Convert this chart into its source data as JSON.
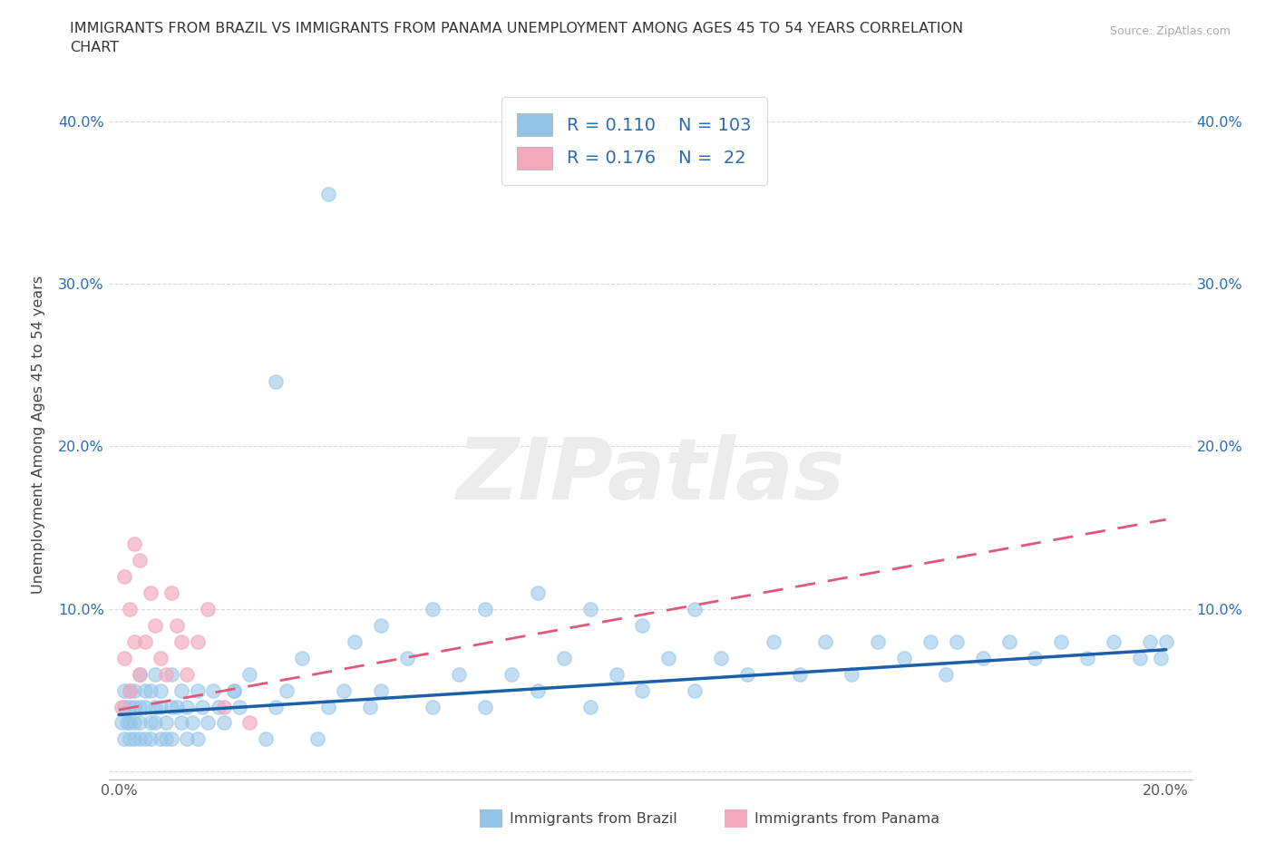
{
  "title_line1": "IMMIGRANTS FROM BRAZIL VS IMMIGRANTS FROM PANAMA UNEMPLOYMENT AMONG AGES 45 TO 54 YEARS CORRELATION",
  "title_line2": "CHART",
  "source": "Source: ZipAtlas.com",
  "ylabel": "Unemployment Among Ages 45 to 54 years",
  "xlim": [
    -0.002,
    0.205
  ],
  "ylim": [
    -0.005,
    0.42
  ],
  "xticks": [
    0.0,
    0.05,
    0.1,
    0.15,
    0.2
  ],
  "yticks": [
    0.0,
    0.1,
    0.2,
    0.3,
    0.4
  ],
  "xticklabels": [
    "0.0%",
    "",
    "",
    "",
    "20.0%"
  ],
  "yticklabels_left": [
    "",
    "10.0%",
    "20.0%",
    "30.0%",
    "40.0%"
  ],
  "yticklabels_right": [
    "",
    "10.0%",
    "20.0%",
    "30.0%",
    "40.0%"
  ],
  "brazil_color": "#93c4e8",
  "panama_color": "#f4a8bc",
  "brazil_line_color": "#1a5fa8",
  "panama_line_color": "#e05878",
  "brazil_R": 0.11,
  "brazil_N": 103,
  "panama_R": 0.176,
  "panama_N": 22,
  "legend_label_brazil": "Immigrants from Brazil",
  "legend_label_panama": "Immigrants from Panama",
  "watermark": "ZIPatlas",
  "text_color_blue": "#2b6cb0",
  "text_color_dark": "#333333",
  "grid_color": "#d8d8d8",
  "brazil_x": [
    0.0005,
    0.001,
    0.001,
    0.001,
    0.0015,
    0.002,
    0.002,
    0.002,
    0.002,
    0.003,
    0.003,
    0.003,
    0.003,
    0.004,
    0.004,
    0.004,
    0.004,
    0.005,
    0.005,
    0.005,
    0.006,
    0.006,
    0.006,
    0.007,
    0.007,
    0.007,
    0.008,
    0.008,
    0.008,
    0.009,
    0.009,
    0.01,
    0.01,
    0.01,
    0.011,
    0.012,
    0.012,
    0.013,
    0.013,
    0.014,
    0.015,
    0.015,
    0.016,
    0.017,
    0.018,
    0.019,
    0.02,
    0.022,
    0.023,
    0.025,
    0.028,
    0.03,
    0.032,
    0.035,
    0.038,
    0.04,
    0.043,
    0.045,
    0.048,
    0.05,
    0.055,
    0.06,
    0.065,
    0.07,
    0.075,
    0.08,
    0.085,
    0.09,
    0.095,
    0.1,
    0.105,
    0.11,
    0.115,
    0.12,
    0.125,
    0.13,
    0.135,
    0.14,
    0.145,
    0.15,
    0.155,
    0.158,
    0.16,
    0.165,
    0.17,
    0.175,
    0.18,
    0.185,
    0.19,
    0.195,
    0.197,
    0.199,
    0.2,
    0.04,
    0.03,
    0.022,
    0.05,
    0.06,
    0.07,
    0.08,
    0.09,
    0.1,
    0.11
  ],
  "brazil_y": [
    0.03,
    0.02,
    0.04,
    0.05,
    0.03,
    0.02,
    0.04,
    0.03,
    0.05,
    0.02,
    0.04,
    0.03,
    0.05,
    0.02,
    0.04,
    0.03,
    0.06,
    0.02,
    0.04,
    0.05,
    0.03,
    0.05,
    0.02,
    0.04,
    0.03,
    0.06,
    0.02,
    0.04,
    0.05,
    0.03,
    0.02,
    0.04,
    0.06,
    0.02,
    0.04,
    0.03,
    0.05,
    0.02,
    0.04,
    0.03,
    0.05,
    0.02,
    0.04,
    0.03,
    0.05,
    0.04,
    0.03,
    0.05,
    0.04,
    0.06,
    0.02,
    0.04,
    0.05,
    0.07,
    0.02,
    0.04,
    0.05,
    0.08,
    0.04,
    0.05,
    0.07,
    0.04,
    0.06,
    0.04,
    0.06,
    0.05,
    0.07,
    0.04,
    0.06,
    0.05,
    0.07,
    0.05,
    0.07,
    0.06,
    0.08,
    0.06,
    0.08,
    0.06,
    0.08,
    0.07,
    0.08,
    0.06,
    0.08,
    0.07,
    0.08,
    0.07,
    0.08,
    0.07,
    0.08,
    0.07,
    0.08,
    0.07,
    0.08,
    0.355,
    0.24,
    0.05,
    0.09,
    0.1,
    0.1,
    0.11,
    0.1,
    0.09,
    0.1
  ],
  "panama_x": [
    0.0005,
    0.001,
    0.001,
    0.002,
    0.002,
    0.003,
    0.003,
    0.004,
    0.004,
    0.005,
    0.006,
    0.007,
    0.008,
    0.009,
    0.01,
    0.011,
    0.012,
    0.013,
    0.015,
    0.017,
    0.02,
    0.025
  ],
  "panama_y": [
    0.04,
    0.12,
    0.07,
    0.1,
    0.05,
    0.14,
    0.08,
    0.13,
    0.06,
    0.08,
    0.11,
    0.09,
    0.07,
    0.06,
    0.11,
    0.09,
    0.08,
    0.06,
    0.08,
    0.1,
    0.04,
    0.03
  ],
  "brazil_trend_x": [
    0.0,
    0.2
  ],
  "brazil_trend_y": [
    0.035,
    0.075
  ],
  "panama_trend_x": [
    0.0,
    0.2
  ],
  "panama_trend_y": [
    0.038,
    0.155
  ]
}
